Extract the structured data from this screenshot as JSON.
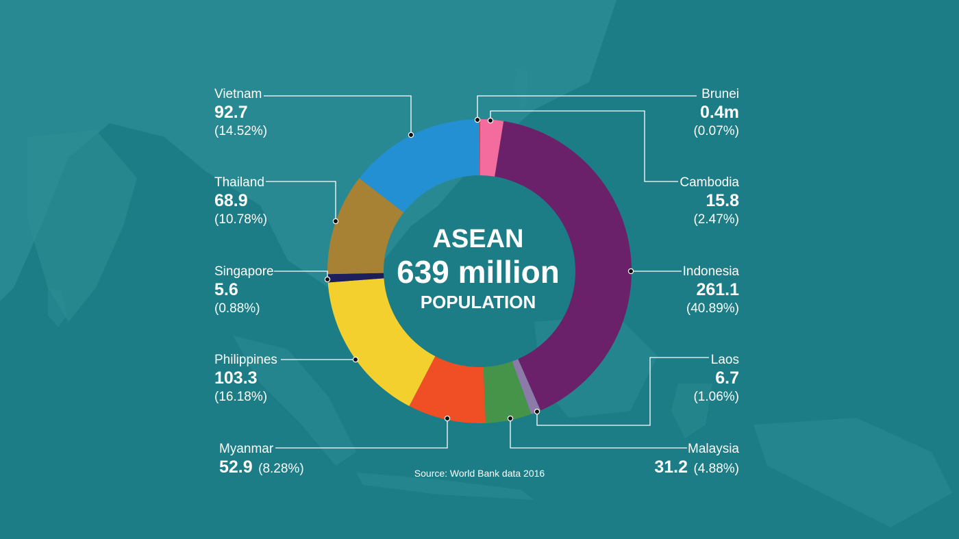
{
  "center": {
    "title": "ASEAN",
    "total": "639 million",
    "subtitle": "POPULATION"
  },
  "source": "Source: World Bank data 2016",
  "colors": {
    "background": "#1c7d86",
    "land": "#2e8d95",
    "leader": "#ffffff"
  },
  "chart_data": {
    "type": "pie",
    "variant": "donut",
    "title": "ASEAN 639 million POPULATION",
    "total_millions": 639,
    "unit": "million",
    "slices": [
      {
        "name": "Brunei",
        "value": 0.4,
        "value_label": "0.4m",
        "percent": 0.07,
        "percent_label": "(0.07%)",
        "color": "#e0242d"
      },
      {
        "name": "Cambodia",
        "value": 15.8,
        "value_label": "15.8",
        "percent": 2.47,
        "percent_label": "(2.47%)",
        "color": "#f46c9e"
      },
      {
        "name": "Indonesia",
        "value": 261.1,
        "value_label": "261.1",
        "percent": 40.89,
        "percent_label": "(40.89%)",
        "color": "#6a2169"
      },
      {
        "name": "Laos",
        "value": 6.7,
        "value_label": "6.7",
        "percent": 1.06,
        "percent_label": "(1.06%)",
        "color": "#8c7ba8"
      },
      {
        "name": "Malaysia",
        "value": 31.2,
        "value_label": "31.2",
        "percent": 4.88,
        "percent_label": "(4.88%)",
        "color": "#46944a"
      },
      {
        "name": "Myanmar",
        "value": 52.9,
        "value_label": "52.9",
        "percent": 8.28,
        "percent_label": "(8.28%)",
        "color": "#f04f26"
      },
      {
        "name": "Philippines",
        "value": 103.3,
        "value_label": "103.3",
        "percent": 16.18,
        "percent_label": "(16.18%)",
        "color": "#f4d02e"
      },
      {
        "name": "Singapore",
        "value": 5.6,
        "value_label": "5.6",
        "percent": 0.88,
        "percent_label": "(0.88%)",
        "color": "#1d1f5c"
      },
      {
        "name": "Thailand",
        "value": 68.9,
        "value_label": "68.9",
        "percent": 10.78,
        "percent_label": "(10.78%)",
        "color": "#a88234"
      },
      {
        "name": "Vietnam",
        "value": 92.7,
        "value_label": "92.7",
        "percent": 14.52,
        "percent_label": "(14.52%)",
        "color": "#2390d4"
      }
    ]
  }
}
